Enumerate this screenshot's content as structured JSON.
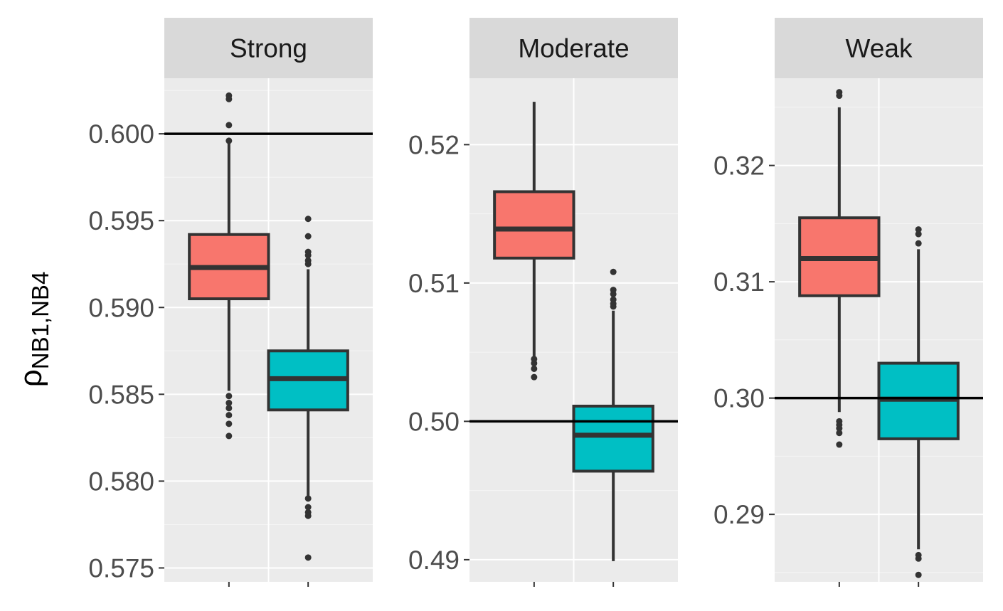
{
  "chart_data": {
    "type": "boxplot",
    "ylabel": {
      "symbol": "ρ",
      "subscript": "NB1,NB4"
    },
    "legend": "none",
    "grid": true,
    "colors": {
      "series_1": "#F8766D",
      "series_2": "#00BFC4",
      "reference_line": "#000000",
      "panel_bg": "#EBEBEB",
      "strip_bg": "#D9D9D9"
    },
    "panels": [
      {
        "title": "Strong",
        "ylim": [
          0.5742,
          0.6032
        ],
        "ticks": [
          0.575,
          0.58,
          0.585,
          0.59,
          0.595,
          0.6
        ],
        "tick_labels": [
          "0.575",
          "0.580",
          "0.585",
          "0.590",
          "0.595",
          "0.600"
        ],
        "reference_line": 0.6,
        "boxes": [
          {
            "color": "#F8766D",
            "whisker_low": 0.5852,
            "q1": 0.5905,
            "median": 0.5923,
            "q3": 0.5942,
            "whisker_high": 0.5995,
            "outliers": [
              0.6022,
              0.602,
              0.6005,
              0.5996,
              0.5849,
              0.5845,
              0.5842,
              0.5838,
              0.5833,
              0.5826
            ]
          },
          {
            "color": "#00BFC4",
            "whisker_low": 0.5791,
            "q1": 0.5841,
            "median": 0.5859,
            "q3": 0.5875,
            "whisker_high": 0.5922,
            "outliers": [
              0.5951,
              0.5941,
              0.5932,
              0.593,
              0.5927,
              0.5925,
              0.579,
              0.5785,
              0.5782,
              0.578,
              0.5756
            ]
          }
        ]
      },
      {
        "title": "Moderate",
        "ylim": [
          0.4884,
          0.5248
        ],
        "ticks": [
          0.49,
          0.5,
          0.51,
          0.52
        ],
        "tick_labels": [
          "0.49",
          "0.50",
          "0.51",
          "0.52"
        ],
        "reference_line": 0.5,
        "boxes": [
          {
            "color": "#F8766D",
            "whisker_low": 0.5046,
            "q1": 0.5118,
            "median": 0.5139,
            "q3": 0.5166,
            "whisker_high": 0.5231,
            "outliers": [
              0.5045,
              0.5042,
              0.5038,
              0.5032
            ]
          },
          {
            "color": "#00BFC4",
            "whisker_low": 0.4899,
            "q1": 0.4964,
            "median": 0.499,
            "q3": 0.5011,
            "whisker_high": 0.508,
            "outliers": [
              0.5108,
              0.5095,
              0.5092,
              0.5088,
              0.5085,
              0.5083
            ]
          }
        ]
      },
      {
        "title": "Weak",
        "ylim": [
          0.2842,
          0.3275
        ],
        "ticks": [
          0.29,
          0.3,
          0.31,
          0.32
        ],
        "tick_labels": [
          "0.29",
          "0.30",
          "0.31",
          "0.32"
        ],
        "reference_line": 0.3,
        "boxes": [
          {
            "color": "#F8766D",
            "whisker_low": 0.2988,
            "q1": 0.3088,
            "median": 0.312,
            "q3": 0.3155,
            "whisker_high": 0.325,
            "outliers": [
              0.3263,
              0.326,
              0.298,
              0.2977,
              0.2974,
              0.297,
              0.296
            ]
          },
          {
            "color": "#00BFC4",
            "whisker_low": 0.287,
            "q1": 0.2965,
            "median": 0.2999,
            "q3": 0.303,
            "whisker_high": 0.3128,
            "outliers": [
              0.3145,
              0.3141,
              0.3133,
              0.2865,
              0.2862,
              0.2848
            ]
          }
        ]
      }
    ]
  }
}
